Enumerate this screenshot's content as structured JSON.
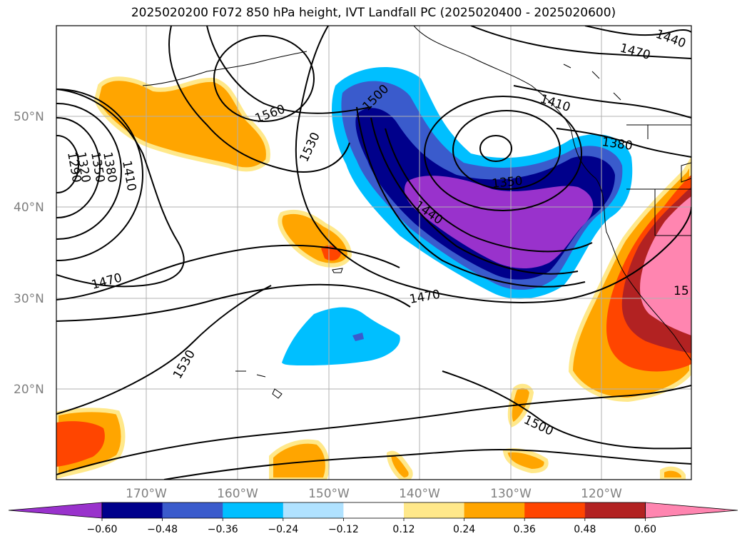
{
  "title": "2025020200 F072 850 hPa height, IVT Landfall PC (2025020400 - 2025020600)",
  "latitude_labels": [
    "50°N",
    "40°N",
    "30°N",
    "20°N"
  ],
  "longitude_labels": [
    "170°W",
    "160°W",
    "150°W",
    "140°W",
    "130°W",
    "120°W"
  ],
  "contour_labels": [
    "1440",
    "1470",
    "1410",
    "1380",
    "1350",
    "1320",
    "1290",
    "1560",
    "1530",
    "1500",
    "1440",
    "1410",
    "1380",
    "1350",
    "1470",
    "1470",
    "1530",
    "1500",
    "15"
  ],
  "colorbar": {
    "tick_labels": [
      "−0.60",
      "−0.48",
      "−0.36",
      "−0.24",
      "−0.12",
      "0.12",
      "0.24",
      "0.36",
      "0.48",
      "0.60"
    ],
    "colors": [
      "#9932cc",
      "#00008b",
      "#3a5bcc",
      "#00bfff",
      "#b0e2ff",
      "#ffffff",
      "#ffe88a",
      "#ffa500",
      "#ff4500",
      "#b22222",
      "#ff85b0"
    ]
  },
  "colors": {
    "negative_strong": "#9932cc",
    "negative_navy": "#00008b",
    "negative_blue": "#3a5bcc",
    "negative_sky": "#00bfff",
    "positive_yellow": "#ffe88a",
    "positive_orange": "#ffa500",
    "positive_red": "#ff4500",
    "positive_firebrick": "#b22222",
    "positive_pink": "#ff85b0",
    "gridline": "#b0b0b0"
  }
}
